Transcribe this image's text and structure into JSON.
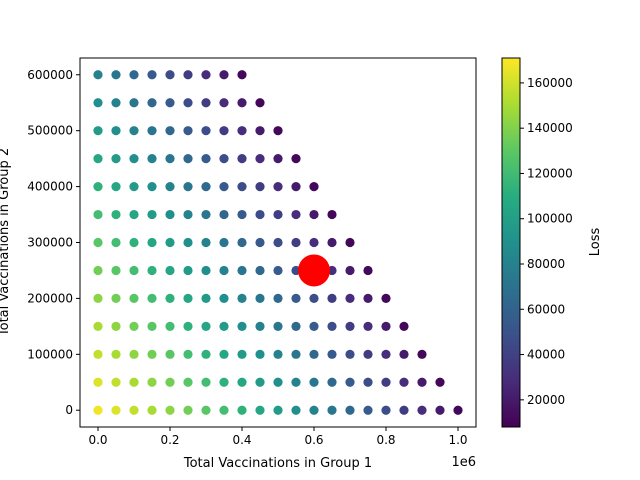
{
  "chart_data": {
    "type": "scatter",
    "title": "",
    "xlabel": "Total Vaccinations in Group 1",
    "ylabel": "Total Vaccinations in Group 2",
    "x_offset_label": "1e6",
    "xlim": [
      -50000,
      1050000
    ],
    "ylim": [
      -30000,
      630000
    ],
    "x_ticks": [
      0,
      200000,
      400000,
      600000,
      800000,
      1000000
    ],
    "x_tick_labels": [
      "0.0",
      "0.2",
      "0.4",
      "0.6",
      "0.8",
      "1.0"
    ],
    "y_ticks": [
      0,
      100000,
      200000,
      300000,
      400000,
      500000,
      600000
    ],
    "y_tick_labels": [
      "0",
      "100000",
      "200000",
      "300000",
      "400000",
      "500000",
      "600000"
    ],
    "grid": false,
    "grid_step": 50000,
    "x_max_total": 1000000,
    "y_max": 600000,
    "colormap": "viridis",
    "colorbar": {
      "label": "Loss",
      "range": [
        8000,
        171000
      ],
      "ticks": [
        20000,
        40000,
        60000,
        80000,
        100000,
        120000,
        140000,
        160000
      ],
      "tick_labels": [
        "20000",
        "40000",
        "60000",
        "80000",
        "100000",
        "120000",
        "140000",
        "160000"
      ]
    },
    "highlight": {
      "x": 600000,
      "y": 250000,
      "color": "#ff0000"
    }
  }
}
